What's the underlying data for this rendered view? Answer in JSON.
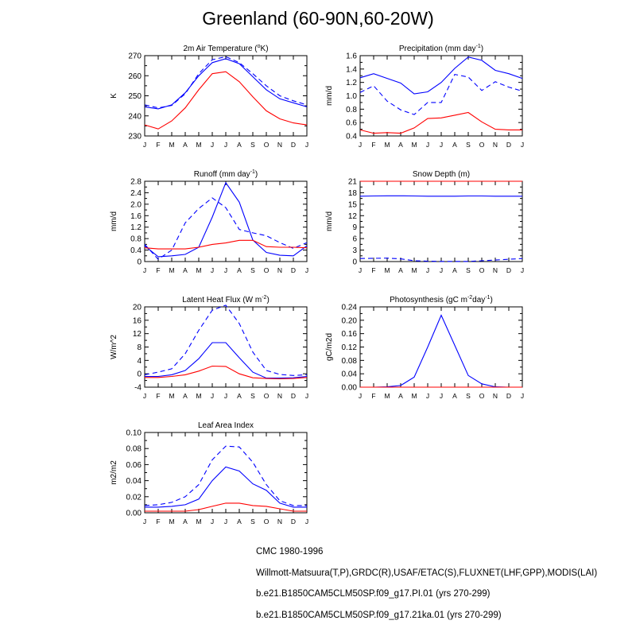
{
  "title": "Greenland (60-90N,60-20W)",
  "colors": {
    "blue": "#0000ff",
    "red": "#ff0000"
  },
  "chart_data": [
    {
      "id": "air-temperature",
      "type": "line",
      "title": "2m Air Temperature (°K)",
      "title_parts": [
        "2m Air Temperature (",
        "o",
        "K)"
      ],
      "ylabel": "K",
      "x": [
        "J",
        "F",
        "M",
        "A",
        "M",
        "J",
        "J",
        "A",
        "S",
        "O",
        "N",
        "D",
        "J"
      ],
      "ylim": [
        230,
        270
      ],
      "yticks": [
        230,
        240,
        250,
        260,
        270
      ],
      "ytick_labels": [
        "230",
        "240",
        "250",
        "260",
        "270"
      ],
      "series": [
        {
          "style": "dash",
          "color": "blue",
          "values": [
            245.5,
            244,
            245.2,
            251,
            261,
            268,
            269.5,
            266.5,
            261,
            255,
            250,
            247.5,
            245.5
          ]
        },
        {
          "style": "solid",
          "color": "blue",
          "values": [
            244.5,
            243.5,
            245.5,
            251.5,
            260,
            266.5,
            268.5,
            266,
            259.5,
            253,
            248.5,
            246.5,
            244.5
          ]
        },
        {
          "style": "solid",
          "color": "red",
          "values": [
            235.5,
            233.5,
            237.5,
            244,
            253,
            261,
            262,
            257,
            249.5,
            242.5,
            238.5,
            236.5,
            235.5
          ]
        }
      ]
    },
    {
      "id": "precipitation",
      "type": "line",
      "title": "Precipitation (mm day-1)",
      "title_parts": [
        "Precipitation (mm day",
        "-1",
        ")"
      ],
      "ylabel": "mm/d",
      "x": [
        "J",
        "F",
        "M",
        "A",
        "M",
        "J",
        "J",
        "A",
        "S",
        "O",
        "N",
        "D",
        "J"
      ],
      "ylim": [
        0.4,
        1.6
      ],
      "yticks": [
        0.4,
        0.6,
        0.8,
        1.0,
        1.2,
        1.4,
        1.6
      ],
      "ytick_labels": [
        "0.4",
        "0.6",
        "0.8",
        "1.0",
        "1.2",
        "1.4",
        "1.6"
      ],
      "series": [
        {
          "style": "dash",
          "color": "blue",
          "values": [
            1.05,
            1.15,
            0.92,
            0.79,
            0.72,
            0.9,
            0.9,
            1.32,
            1.28,
            1.08,
            1.21,
            1.13,
            1.07
          ]
        },
        {
          "style": "solid",
          "color": "blue",
          "values": [
            1.27,
            1.33,
            1.26,
            1.19,
            1.03,
            1.06,
            1.2,
            1.41,
            1.58,
            1.53,
            1.38,
            1.33,
            1.26
          ]
        },
        {
          "style": "solid",
          "color": "red",
          "values": [
            0.49,
            0.44,
            0.45,
            0.44,
            0.52,
            0.66,
            0.67,
            0.71,
            0.75,
            0.61,
            0.5,
            0.49,
            0.49
          ]
        }
      ]
    },
    {
      "id": "runoff",
      "type": "line",
      "title": "Runoff (mm day-1)",
      "title_parts": [
        "Runoff (mm day",
        "-1",
        ")"
      ],
      "ylabel": "mm/d",
      "x": [
        "J",
        "F",
        "M",
        "A",
        "M",
        "J",
        "J",
        "A",
        "S",
        "O",
        "N",
        "D",
        "J"
      ],
      "ylim": [
        0,
        2.8
      ],
      "yticks": [
        0,
        0.4,
        0.8,
        1.2,
        1.6,
        2.0,
        2.4,
        2.8
      ],
      "ytick_labels": [
        "0",
        "0.4",
        "0.8",
        "1.2",
        "1.6",
        "2.0",
        "2.4",
        "2.8"
      ],
      "series": [
        {
          "style": "dash",
          "color": "blue",
          "values": [
            0.6,
            0.08,
            0.4,
            1.35,
            1.85,
            2.22,
            1.88,
            1.12,
            1.0,
            0.9,
            0.66,
            0.46,
            0.66
          ]
        },
        {
          "style": "solid",
          "color": "blue",
          "values": [
            0.55,
            0.17,
            0.2,
            0.25,
            0.5,
            1.55,
            2.75,
            2.07,
            0.75,
            0.32,
            0.22,
            0.2,
            0.55
          ]
        },
        {
          "style": "solid",
          "color": "red",
          "values": [
            0.48,
            0.44,
            0.44,
            0.44,
            0.5,
            0.6,
            0.65,
            0.74,
            0.74,
            0.52,
            0.5,
            0.5,
            0.48
          ]
        }
      ]
    },
    {
      "id": "snow-depth",
      "type": "line",
      "title": "Snow Depth (m)",
      "title_parts": [
        "Snow Depth (m)"
      ],
      "ylabel": "mm/d",
      "x": [
        "J",
        "F",
        "M",
        "A",
        "M",
        "J",
        "J",
        "A",
        "S",
        "O",
        "N",
        "D",
        "J"
      ],
      "ylim": [
        0,
        21
      ],
      "yticks": [
        0,
        3,
        6,
        9,
        12,
        15,
        18,
        21
      ],
      "ytick_labels": [
        "0",
        "3",
        "6",
        "9",
        "12",
        "15",
        "18",
        "21"
      ],
      "series": [
        {
          "style": "dash",
          "color": "blue",
          "values": [
            0.8,
            0.85,
            0.9,
            0.7,
            0.2,
            0.1,
            0.05,
            0.05,
            0.05,
            0.2,
            0.4,
            0.6,
            0.8
          ]
        },
        {
          "style": "solid",
          "color": "blue",
          "values": [
            17.1,
            17.15,
            17.2,
            17.2,
            17.15,
            17.1,
            17.1,
            17.1,
            17.15,
            17.15,
            17.1,
            17.1,
            17.1
          ]
        },
        {
          "style": "solid",
          "color": "red",
          "values": [
            21,
            21,
            21,
            21,
            21,
            21,
            21,
            21,
            21,
            21,
            21,
            21,
            21
          ]
        }
      ]
    },
    {
      "id": "latent-heat-flux",
      "type": "line",
      "title": "Latent Heat Flux (W m-2)",
      "title_parts": [
        "Latent Heat Flux (W m",
        "-2",
        ")"
      ],
      "ylabel": "W/m^2",
      "x": [
        "J",
        "F",
        "M",
        "A",
        "M",
        "J",
        "J",
        "A",
        "S",
        "O",
        "N",
        "D",
        "J"
      ],
      "ylim": [
        -4,
        20
      ],
      "yticks": [
        -4,
        0,
        4,
        8,
        12,
        16,
        20
      ],
      "ytick_labels": [
        "-4",
        "0",
        "4",
        "8",
        "12",
        "16",
        "20"
      ],
      "series": [
        {
          "style": "dash",
          "color": "blue",
          "values": [
            -0.3,
            0.5,
            1.5,
            6,
            13,
            19,
            20.5,
            15,
            6.5,
            1,
            -0.2,
            -0.5,
            -0.3
          ]
        },
        {
          "style": "solid",
          "color": "blue",
          "values": [
            -0.8,
            -0.8,
            -0.3,
            1,
            4.5,
            9.3,
            9.3,
            4.8,
            0.5,
            -1.3,
            -1.3,
            -1.2,
            -0.8
          ]
        },
        {
          "style": "solid",
          "color": "red",
          "values": [
            -1.1,
            -1.1,
            -0.8,
            -0.3,
            0.8,
            2.3,
            2.2,
            0,
            -1.2,
            -1.4,
            -1.5,
            -1.4,
            -1.1
          ]
        }
      ]
    },
    {
      "id": "photosynthesis",
      "type": "line",
      "title": "Photosynthesis (gC m-2day-1)",
      "title_parts": [
        "Photosynthesis (gC m",
        "-2",
        "day",
        "-1",
        ")"
      ],
      "ylabel": "gC/m2d",
      "x": [
        "J",
        "F",
        "M",
        "A",
        "M",
        "J",
        "J",
        "A",
        "S",
        "O",
        "N",
        "D",
        "J"
      ],
      "ylim": [
        0,
        0.24
      ],
      "yticks": [
        0,
        0.04,
        0.08,
        0.12,
        0.16,
        0.2,
        0.24
      ],
      "ytick_labels": [
        "0.00",
        "0.04",
        "0.08",
        "0.12",
        "0.16",
        "0.20",
        "0.24"
      ],
      "series": [
        {
          "style": "solid",
          "color": "blue",
          "values": [
            0,
            0,
            0.001,
            0.005,
            0.03,
            0.12,
            0.215,
            0.125,
            0.035,
            0.01,
            0.001,
            0,
            0
          ]
        },
        {
          "style": "solid",
          "color": "red",
          "values": [
            0,
            0,
            0,
            0,
            0,
            0,
            0,
            0,
            0,
            0,
            0,
            0,
            0
          ]
        }
      ]
    },
    {
      "id": "leaf-area-index",
      "type": "line",
      "title": "Leaf Area Index",
      "title_parts": [
        "Leaf Area Index"
      ],
      "ylabel": "m2/m2",
      "x": [
        "J",
        "F",
        "M",
        "A",
        "M",
        "J",
        "J",
        "A",
        "S",
        "O",
        "N",
        "D",
        "J"
      ],
      "ylim": [
        0,
        0.1
      ],
      "yticks": [
        0,
        0.02,
        0.04,
        0.06,
        0.08,
        0.1
      ],
      "ytick_labels": [
        "0.00",
        "0.02",
        "0.04",
        "0.06",
        "0.08",
        "0.10"
      ],
      "series": [
        {
          "style": "dash",
          "color": "blue",
          "values": [
            0.009,
            0.01,
            0.013,
            0.02,
            0.035,
            0.066,
            0.083,
            0.082,
            0.063,
            0.035,
            0.015,
            0.009,
            0.009
          ]
        },
        {
          "style": "solid",
          "color": "blue",
          "values": [
            0.007,
            0.007,
            0.008,
            0.01,
            0.017,
            0.04,
            0.057,
            0.052,
            0.036,
            0.028,
            0.012,
            0.007,
            0.007
          ]
        },
        {
          "style": "solid",
          "color": "red",
          "values": [
            0.002,
            0.002,
            0.002,
            0.002,
            0.004,
            0.008,
            0.012,
            0.012,
            0.009,
            0.008,
            0.005,
            0.002,
            0.002
          ]
        }
      ]
    }
  ],
  "legend": [
    {
      "label": "CMC 1980-1996",
      "style": "longdash",
      "color": "blue"
    },
    {
      "label": "Willmott-Matsuura(T,P),GRDC(R),USAF/ETAC(S),FLUXNET(LHF,GPP),MODIS(LAI)",
      "style": "dash",
      "color": "blue"
    },
    {
      "label": "b.e21.B1850CAM5CLM50SP.f09_g17.PI.01 (yrs 270-299)",
      "style": "solid",
      "color": "blue"
    },
    {
      "label": "b.e21.B1850CAM5CLM50SP.f09_g17.21ka.01 (yrs 270-299)",
      "style": "solid",
      "color": "red"
    }
  ]
}
